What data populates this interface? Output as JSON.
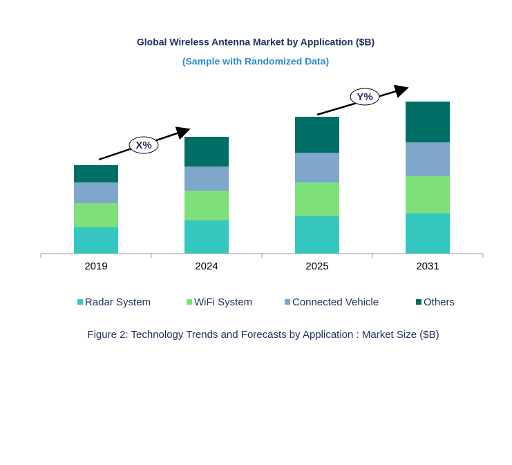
{
  "chart_data": {
    "type": "stacked_bar",
    "title": "Global Wireless Antenna Market by Application ($B)",
    "subtitle": "(Sample with Randomized Data)",
    "categories": [
      "2019",
      "2024",
      "2025",
      "2031"
    ],
    "series": [
      {
        "name": "Radar System",
        "color": "#36c6c0",
        "values": [
          3.8,
          4.8,
          5.4,
          5.8
        ]
      },
      {
        "name": "WiFi System",
        "color": "#7ee07a",
        "values": [
          3.5,
          4.3,
          4.9,
          5.4
        ]
      },
      {
        "name": "Connected Vehicle",
        "color": "#7fa6cb",
        "values": [
          3.0,
          3.5,
          4.3,
          4.9
        ]
      },
      {
        "name": "Others",
        "color": "#006f66",
        "values": [
          2.5,
          4.3,
          5.2,
          5.9
        ]
      }
    ],
    "annotations": [
      "X%",
      "Y%"
    ],
    "caption": "Figure 2: Technology  Trends  and Forecasts by Application : Market Size ($B)"
  }
}
